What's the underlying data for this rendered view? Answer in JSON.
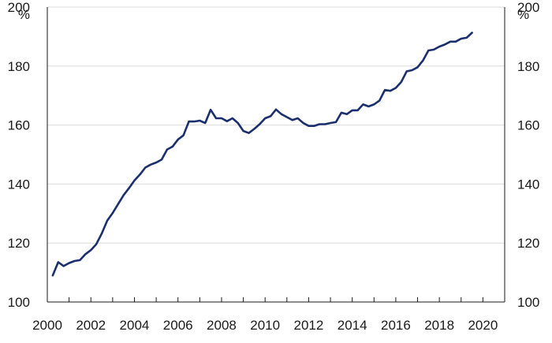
{
  "chart_data": {
    "type": "line",
    "title": "",
    "xlabel": "",
    "ylabel": "",
    "y_unit_left": "%",
    "y_unit_right": "%",
    "xlim": [
      2000,
      2021
    ],
    "ylim": [
      100,
      200
    ],
    "x_ticks": [
      2000,
      2002,
      2004,
      2006,
      2008,
      2010,
      2012,
      2014,
      2016,
      2018,
      2020
    ],
    "x_tick_labels": [
      "2000",
      "2002",
      "2004",
      "2006",
      "2008",
      "2010",
      "2012",
      "2014",
      "2016",
      "2018",
      "2020"
    ],
    "y_ticks": [
      100,
      120,
      140,
      160,
      180,
      200
    ],
    "y_tick_labels": [
      "100",
      "120",
      "140",
      "160",
      "180",
      "200"
    ],
    "grid": true,
    "legend": "none",
    "series": [
      {
        "color": "#1b2f6e",
        "x": [
          2000.25,
          2000.5,
          2000.75,
          2001.0,
          2001.25,
          2001.5,
          2001.75,
          2002.0,
          2002.25,
          2002.5,
          2002.75,
          2003.0,
          2003.25,
          2003.5,
          2003.75,
          2004.0,
          2004.25,
          2004.5,
          2004.75,
          2005.0,
          2005.25,
          2005.5,
          2005.75,
          2006.0,
          2006.25,
          2006.5,
          2006.75,
          2007.0,
          2007.25,
          2007.5,
          2007.75,
          2008.0,
          2008.25,
          2008.5,
          2008.75,
          2009.0,
          2009.25,
          2009.5,
          2009.75,
          2010.0,
          2010.25,
          2010.5,
          2010.75,
          2011.0,
          2011.25,
          2011.5,
          2011.75,
          2012.0,
          2012.25,
          2012.5,
          2012.75,
          2013.0,
          2013.25,
          2013.5,
          2013.75,
          2014.0,
          2014.25,
          2014.5,
          2014.75,
          2015.0,
          2015.25,
          2015.5,
          2015.75,
          2016.0,
          2016.25,
          2016.5,
          2016.75,
          2017.0,
          2017.25,
          2017.5,
          2017.75,
          2018.0,
          2018.25,
          2018.5,
          2018.75,
          2019.0,
          2019.25,
          2019.5
        ],
        "y": [
          109,
          113.5,
          112.2,
          113.2,
          113.9,
          114.2,
          116.2,
          117.6,
          119.6,
          123.2,
          127.6,
          130.2,
          133.2,
          136.2,
          138.6,
          141.2,
          143.2,
          145.6,
          146.6,
          147.3,
          148.3,
          151.7,
          152.7,
          155.1,
          156.5,
          161.2,
          161.2,
          161.5,
          160.7,
          165.2,
          162.3,
          162.3,
          161.3,
          162.3,
          160.7,
          158.0,
          157.3,
          158.7,
          160.3,
          162.3,
          163.0,
          165.3,
          163.7,
          162.7,
          161.7,
          162.3,
          160.7,
          159.7,
          159.7,
          160.3,
          160.3,
          160.7,
          161.0,
          164.2,
          163.7,
          165.0,
          165.0,
          167.0,
          166.3,
          167.0,
          168.3,
          171.9,
          171.6,
          172.6,
          174.6,
          178.2,
          178.6,
          179.6,
          181.9,
          185.3,
          185.6,
          186.6,
          187.3,
          188.3,
          188.3,
          189.3,
          189.6,
          191.3
        ]
      }
    ]
  }
}
